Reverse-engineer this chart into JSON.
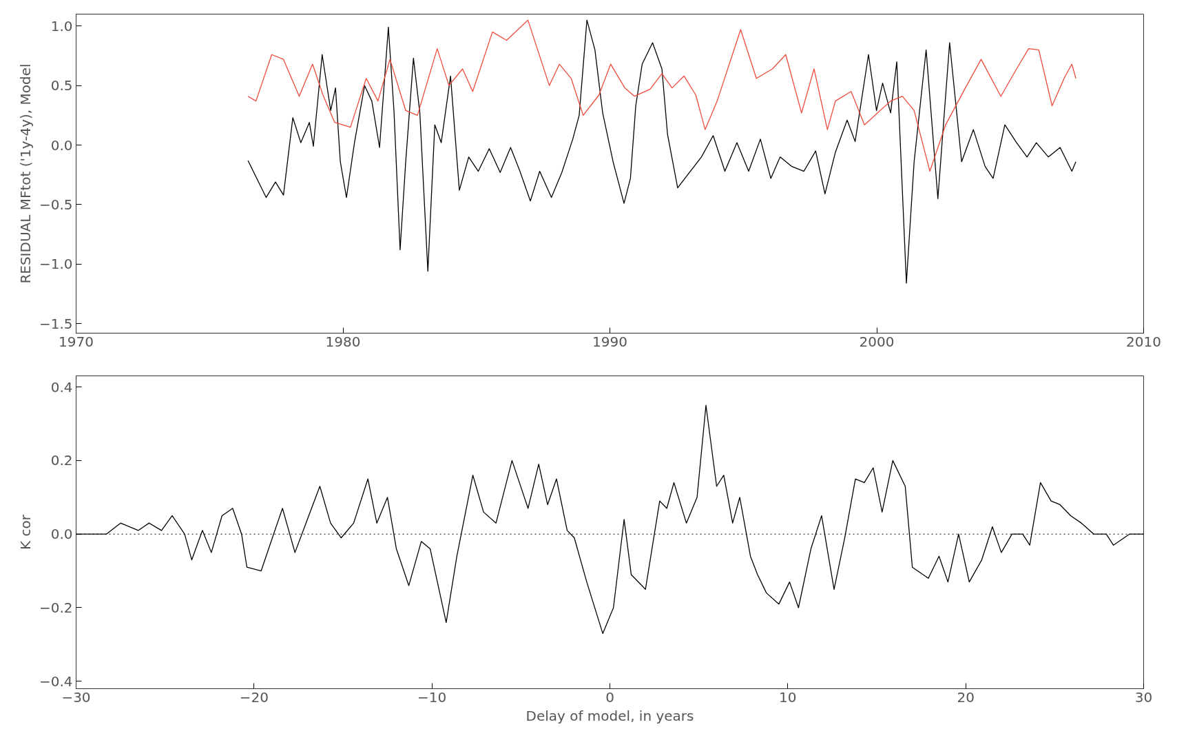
{
  "chart_data": [
    {
      "type": "line",
      "ylabel": "RESIDUAL MFtot ('1y-4y), Model",
      "xlim": [
        1970,
        2010
      ],
      "ylim": [
        -1.58,
        1.1
      ],
      "xticks": [
        1970,
        1980,
        1990,
        2000,
        2010
      ],
      "yticks": [
        {
          "value": 1.0,
          "label": "1.0"
        },
        {
          "value": 0.5,
          "label": "0.5"
        },
        {
          "value": 0.0,
          "label": "0.0"
        },
        {
          "value": -0.5,
          "label": "−0.5"
        },
        {
          "value": -1.0,
          "label": "−1.0"
        },
        {
          "value": -1.5,
          "label": "−1.5"
        }
      ],
      "series": [
        {
          "color": "#000000",
          "x": [
            1976.44,
            1977.12,
            1977.47,
            1977.77,
            1978.12,
            1978.42,
            1978.74,
            1978.89,
            1979.22,
            1979.54,
            1979.72,
            1979.9,
            1980.13,
            1980.43,
            1980.81,
            1981.08,
            1981.37,
            1981.7,
            1981.91,
            1982.14,
            1982.35,
            1982.64,
            1982.88,
            1983.18,
            1983.44,
            1983.68,
            1984.03,
            1984.36,
            1984.71,
            1985.07,
            1985.48,
            1985.89,
            1986.28,
            1986.63,
            1987.02,
            1987.37,
            1987.81,
            1988.2,
            1988.61,
            1988.85,
            1989.14,
            1989.44,
            1989.73,
            1990.12,
            1990.53,
            1990.77,
            1990.97,
            1991.21,
            1991.6,
            1991.95,
            1992.16,
            1992.54,
            1992.98,
            1993.43,
            1993.87,
            1994.31,
            1994.76,
            1995.2,
            1995.64,
            1996.03,
            1996.38,
            1996.82,
            1997.27,
            1997.71,
            1998.06,
            1998.45,
            1998.89,
            1999.19,
            1999.69,
            1999.99,
            2000.22,
            2000.52,
            2000.75,
            2001.11,
            2001.4,
            2001.85,
            2002.29,
            2002.73,
            2003.18,
            2003.62,
            2004.06,
            2004.36,
            2004.8,
            2005.24,
            2005.63,
            2005.98,
            2006.43,
            2006.87,
            2007.31,
            2007.46
          ],
          "values": [
            -0.13,
            -0.44,
            -0.31,
            -0.42,
            0.23,
            0.02,
            0.19,
            -0.01,
            0.76,
            0.29,
            0.48,
            -0.14,
            -0.44,
            0.02,
            0.5,
            0.37,
            -0.02,
            0.99,
            0.29,
            -0.88,
            -0.14,
            0.73,
            0.27,
            -1.06,
            0.17,
            0.02,
            0.58,
            -0.38,
            -0.1,
            -0.22,
            -0.03,
            -0.23,
            -0.02,
            -0.22,
            -0.47,
            -0.22,
            -0.44,
            -0.23,
            0.05,
            0.25,
            1.05,
            0.8,
            0.27,
            -0.14,
            -0.49,
            -0.28,
            0.33,
            0.68,
            0.86,
            0.64,
            0.09,
            -0.36,
            -0.23,
            -0.1,
            0.08,
            -0.22,
            0.02,
            -0.22,
            0.05,
            -0.28,
            -0.1,
            -0.18,
            -0.22,
            -0.05,
            -0.41,
            -0.06,
            0.21,
            0.03,
            0.76,
            0.29,
            0.52,
            0.27,
            0.7,
            -1.16,
            -0.14,
            0.8,
            -0.45,
            0.86,
            -0.14,
            0.13,
            -0.18,
            -0.28,
            0.17,
            0.02,
            -0.1,
            0.02,
            -0.1,
            -0.02,
            -0.22,
            -0.14
          ]
        },
        {
          "color": "#f04a3a",
          "x": [
            1976.44,
            1976.74,
            1977.33,
            1977.77,
            1978.36,
            1978.86,
            1979.25,
            1979.69,
            1980.28,
            1980.87,
            1981.31,
            1981.76,
            1982.35,
            1982.79,
            1983.53,
            1983.97,
            1984.48,
            1984.86,
            1985.6,
            1986.13,
            1986.93,
            1987.73,
            1988.11,
            1988.55,
            1989.0,
            1989.59,
            1990.03,
            1990.56,
            1990.92,
            1991.51,
            1991.95,
            1992.33,
            1992.78,
            1993.22,
            1993.57,
            1994.02,
            1994.9,
            1995.49,
            1996.09,
            1996.59,
            1997.18,
            1997.65,
            1998.15,
            1998.45,
            1999.04,
            1999.54,
            2000.52,
            2000.96,
            2001.4,
            2001.99,
            2002.58,
            2003.32,
            2003.91,
            2004.65,
            2005.24,
            2005.69,
            2006.07,
            2006.57,
            2007.02,
            2007.31,
            2007.46
          ],
          "values": [
            0.41,
            0.37,
            0.76,
            0.72,
            0.41,
            0.68,
            0.42,
            0.19,
            0.15,
            0.56,
            0.37,
            0.72,
            0.29,
            0.25,
            0.81,
            0.5,
            0.64,
            0.45,
            0.95,
            0.88,
            1.05,
            0.5,
            0.68,
            0.56,
            0.25,
            0.42,
            0.68,
            0.48,
            0.41,
            0.47,
            0.6,
            0.48,
            0.58,
            0.42,
            0.13,
            0.37,
            0.97,
            0.56,
            0.64,
            0.76,
            0.27,
            0.64,
            0.13,
            0.37,
            0.45,
            0.17,
            0.37,
            0.41,
            0.29,
            -0.22,
            0.17,
            0.48,
            0.72,
            0.41,
            0.64,
            0.81,
            0.8,
            0.33,
            0.56,
            0.68,
            0.56
          ]
        }
      ]
    },
    {
      "type": "line",
      "ylabel": "K cor",
      "xlabel": "Delay of model, in years",
      "xlim": [
        -30,
        30
      ],
      "ylim": [
        -0.42,
        0.43
      ],
      "xticks": [
        {
          "value": -30,
          "label": "−30"
        },
        {
          "value": -20,
          "label": "−20"
        },
        {
          "value": -10,
          "label": "−10"
        },
        0,
        10,
        20,
        30
      ],
      "yticks": [
        {
          "value": 0.4,
          "label": "0.4"
        },
        {
          "value": 0.2,
          "label": "0.2"
        },
        {
          "value": 0.0,
          "label": "0.0"
        },
        {
          "value": -0.2,
          "label": "−0.2"
        },
        {
          "value": -0.4,
          "label": "−0.4"
        }
      ],
      "ref_lines": [
        {
          "axis": "y",
          "value": 0,
          "line_style": "dotted",
          "color": "#000000"
        }
      ],
      "series": [
        {
          "color": "#000000",
          "x": [
            -30,
            -28.3,
            -27.5,
            -26.5,
            -25.9,
            -25.2,
            -24.6,
            -23.9,
            -23.5,
            -22.9,
            -22.4,
            -21.8,
            -21.2,
            -20.7,
            -20.4,
            -19.6,
            -18.9,
            -18.4,
            -17.7,
            -17.0,
            -16.3,
            -15.7,
            -15.1,
            -14.4,
            -13.6,
            -13.1,
            -12.5,
            -12.0,
            -11.3,
            -10.6,
            -10.1,
            -9.2,
            -8.6,
            -7.7,
            -7.1,
            -6.4,
            -5.5,
            -4.6,
            -4.0,
            -3.5,
            -3.0,
            -2.4,
            -2.0,
            -1.3,
            -0.4,
            0.2,
            0.8,
            1.2,
            2.0,
            2.8,
            3.2,
            3.6,
            4.3,
            4.9,
            5.4,
            6.0,
            6.4,
            6.9,
            7.3,
            7.9,
            8.3,
            8.8,
            9.5,
            10.1,
            10.6,
            11.3,
            11.9,
            12.6,
            13.2,
            13.8,
            14.3,
            14.8,
            15.3,
            15.9,
            16.6,
            17.0,
            17.9,
            18.5,
            19.0,
            19.6,
            20.2,
            20.9,
            21.5,
            22.0,
            22.6,
            23.2,
            23.6,
            24.2,
            24.8,
            25.3,
            25.9,
            26.5,
            27.2,
            27.9,
            28.3,
            29.2,
            30
          ],
          "values": [
            0,
            0,
            0.03,
            0.01,
            0.03,
            0.01,
            0.05,
            0,
            -0.07,
            0.01,
            -0.05,
            0.05,
            0.07,
            0.0,
            -0.09,
            -0.1,
            0,
            0.07,
            -0.05,
            0.04,
            0.13,
            0.03,
            -0.01,
            0.03,
            0.15,
            0.03,
            0.1,
            -0.04,
            -0.14,
            -0.02,
            -0.04,
            -0.24,
            -0.06,
            0.16,
            0.06,
            0.03,
            0.2,
            0.07,
            0.19,
            0.08,
            0.15,
            0.01,
            -0.01,
            -0.13,
            -0.27,
            -0.2,
            0.04,
            -0.11,
            -0.15,
            0.09,
            0.07,
            0.14,
            0.03,
            0.1,
            0.35,
            0.13,
            0.16,
            0.03,
            0.1,
            -0.06,
            -0.11,
            -0.16,
            -0.19,
            -0.13,
            -0.2,
            -0.04,
            0.05,
            -0.15,
            -0.01,
            0.15,
            0.14,
            0.18,
            0.06,
            0.2,
            0.13,
            -0.09,
            -0.12,
            -0.06,
            -0.13,
            0.0,
            -0.13,
            -0.07,
            0.02,
            -0.05,
            0.0,
            0.0,
            -0.03,
            0.14,
            0.09,
            0.08,
            0.05,
            0.03,
            0,
            0.0,
            -0.03,
            0,
            0
          ]
        }
      ]
    }
  ]
}
